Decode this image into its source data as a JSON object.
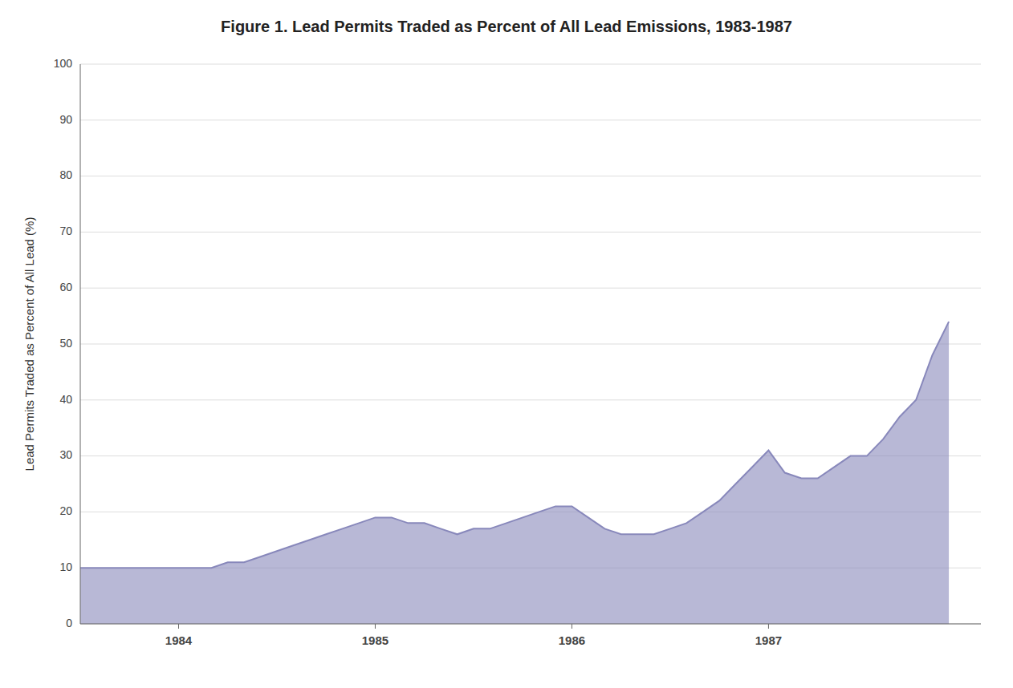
{
  "chart_data": {
    "type": "area",
    "title": "Figure 1. Lead Permits Traded as Percent of All Lead Emissions, 1983-1987",
    "ylabel": "Lead Permits Traded as Percent of All Lead (%)",
    "x": [
      1983.0,
      1983.083,
      1983.167,
      1983.25,
      1983.333,
      1983.417,
      1983.5,
      1983.583,
      1983.667,
      1983.75,
      1983.833,
      1983.917,
      1984.0,
      1984.083,
      1984.167,
      1984.25,
      1984.333,
      1984.417,
      1984.5,
      1984.583,
      1984.667,
      1984.75,
      1984.833,
      1984.917,
      1985.0,
      1985.083,
      1985.167,
      1985.25,
      1985.333,
      1985.417,
      1985.5,
      1985.583,
      1985.667,
      1985.75,
      1985.833,
      1985.917,
      1986.0,
      1986.083,
      1986.167,
      1986.25,
      1986.333,
      1986.417,
      1986.5,
      1986.583,
      1986.667,
      1986.75,
      1986.833,
      1986.917,
      1987.0,
      1987.083,
      1987.167,
      1987.25,
      1987.333,
      1987.417
    ],
    "values": [
      10,
      10,
      10,
      10,
      10,
      10,
      10,
      10,
      10,
      11,
      11,
      12,
      13,
      14,
      15,
      16,
      17,
      18,
      19,
      19,
      18,
      18,
      17,
      16,
      17,
      17,
      18,
      19,
      20,
      21,
      21,
      19,
      17,
      16,
      16,
      16,
      17,
      18,
      20,
      22,
      25,
      28,
      31,
      27,
      26,
      26,
      28,
      30,
      30,
      33,
      37,
      40,
      48,
      54
    ],
    "color": "#8888bb",
    "xlim": [
      1983.0,
      1987.58
    ],
    "xticks": [
      {
        "value": 1983.5,
        "label": "1984"
      },
      {
        "value": 1984.5,
        "label": "1985"
      },
      {
        "value": 1985.5,
        "label": "1986"
      },
      {
        "value": 1986.5,
        "label": "1987"
      }
    ],
    "ylim": [
      0,
      100
    ],
    "yticks": [
      0,
      10,
      20,
      30,
      40,
      50,
      60,
      70,
      80,
      90,
      100
    ],
    "grid": true
  }
}
